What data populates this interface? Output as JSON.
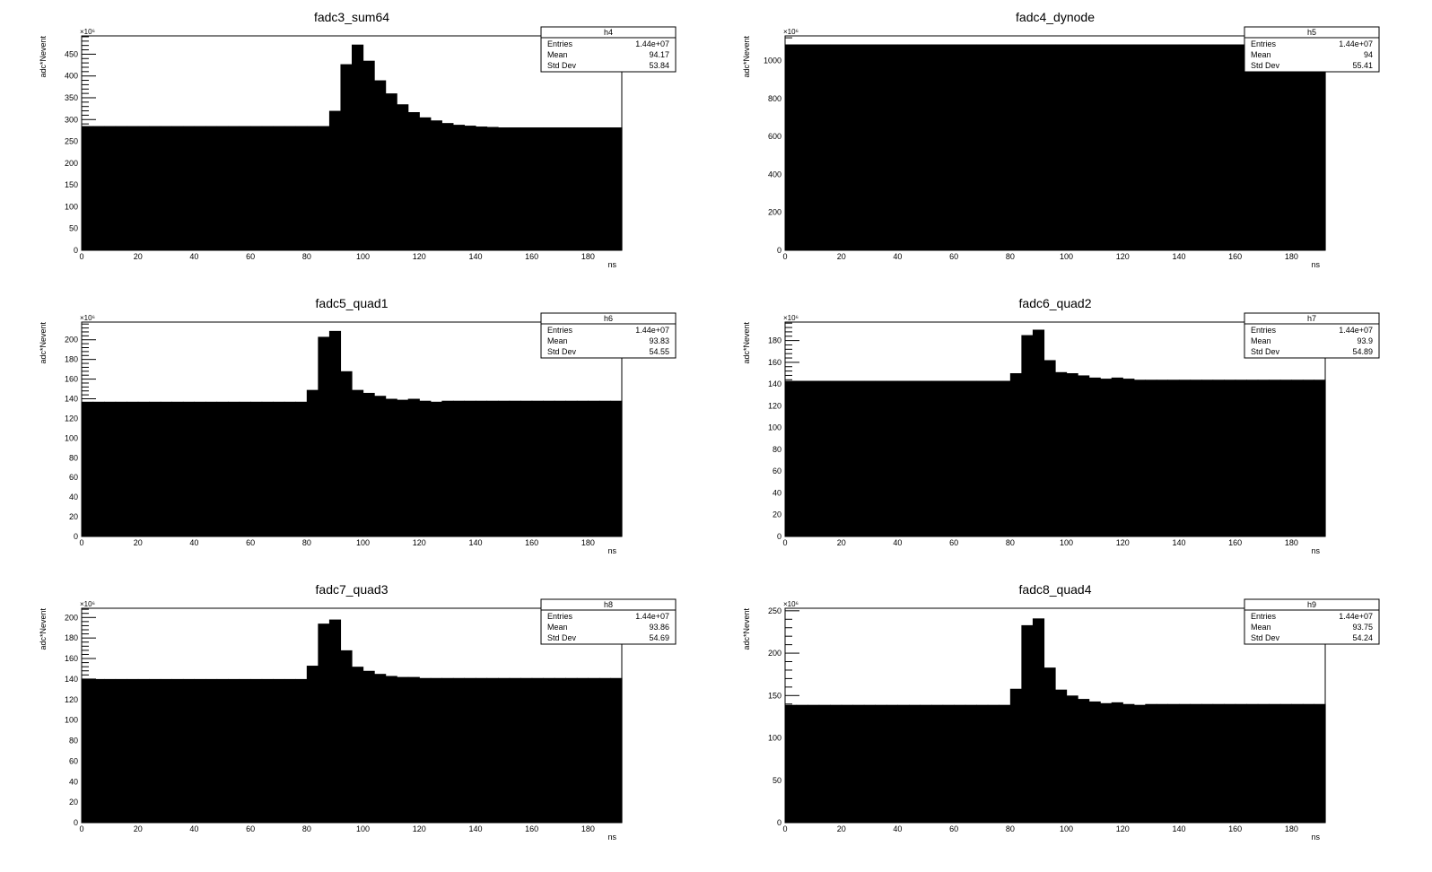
{
  "canvas": {
    "background": "#ffffff",
    "fill_color": "#000000"
  },
  "chart_data": [
    {
      "type": "bar",
      "title": "fadc3_sum64",
      "xlabel": "ns",
      "ylabel": "adc*Nevent",
      "y_multiplier": "×10⁶",
      "xlim": [
        0,
        192
      ],
      "ylim": [
        0,
        492
      ],
      "xticks": [
        0,
        20,
        40,
        60,
        80,
        100,
        120,
        140,
        160,
        180
      ],
      "yticks": [
        0,
        50,
        100,
        150,
        200,
        250,
        300,
        350,
        400,
        450
      ],
      "bin_width": 4,
      "values": [
        285,
        285,
        285,
        285,
        285,
        285,
        285,
        285,
        285,
        285,
        285,
        285,
        285,
        285,
        285,
        285,
        285,
        285,
        285,
        285,
        285,
        285,
        320,
        427,
        472,
        435,
        390,
        360,
        335,
        317,
        305,
        298,
        292,
        288,
        286,
        284,
        283,
        282,
        282,
        282,
        282,
        282,
        282,
        282,
        282,
        282,
        282,
        282
      ],
      "stats": {
        "name": "h4",
        "rows": [
          {
            "label": "Entries",
            "value": "1.44e+07"
          },
          {
            "label": "Mean",
            "value": "94.17"
          },
          {
            "label": "Std Dev",
            "value": "53.84"
          }
        ]
      }
    },
    {
      "type": "bar",
      "title": "fadc4_dynode",
      "xlabel": "ns",
      "ylabel": "adc*Nevent",
      "y_multiplier": "×10⁶",
      "xlim": [
        0,
        192
      ],
      "ylim": [
        0,
        1130
      ],
      "xticks": [
        0,
        20,
        40,
        60,
        80,
        100,
        120,
        140,
        160,
        180
      ],
      "yticks": [
        0,
        200,
        400,
        600,
        800,
        1000
      ],
      "bin_width": 4,
      "values": [
        1085,
        1085,
        1085,
        1085,
        1085,
        1085,
        1085,
        1085,
        1085,
        1085,
        1085,
        1085,
        1085,
        1085,
        1085,
        1085,
        1085,
        1085,
        1085,
        1085,
        1085,
        1085,
        1085,
        1085,
        1085,
        1085,
        1085,
        1085,
        1085,
        1085,
        1085,
        1085,
        1085,
        1085,
        1085,
        1085,
        1085,
        1085,
        1085,
        1085,
        1085,
        1085,
        1085,
        1085,
        1085,
        1085,
        1085,
        1085
      ],
      "stats": {
        "name": "h5",
        "rows": [
          {
            "label": "Entries",
            "value": "1.44e+07"
          },
          {
            "label": "Mean",
            "value": "94"
          },
          {
            "label": "Std Dev",
            "value": "55.41"
          }
        ]
      }
    },
    {
      "type": "bar",
      "title": "fadc5_quad1",
      "xlabel": "ns",
      "ylabel": "adc*Nevent",
      "y_multiplier": "×10⁶",
      "xlim": [
        0,
        192
      ],
      "ylim": [
        0,
        218
      ],
      "xticks": [
        0,
        20,
        40,
        60,
        80,
        100,
        120,
        140,
        160,
        180
      ],
      "yticks": [
        0,
        20,
        40,
        60,
        80,
        100,
        120,
        140,
        160,
        180,
        200
      ],
      "bin_width": 4,
      "values": [
        137,
        137,
        137,
        137,
        137,
        137,
        137,
        137,
        137,
        137,
        137,
        137,
        137,
        137,
        137,
        137,
        137,
        137,
        137,
        137,
        149,
        203,
        209,
        168,
        149,
        146,
        143,
        140,
        139,
        140,
        138,
        137,
        138,
        138,
        138,
        138,
        138,
        138,
        138,
        138,
        138,
        138,
        138,
        138,
        138,
        138,
        138,
        138
      ],
      "stats": {
        "name": "h6",
        "rows": [
          {
            "label": "Entries",
            "value": "1.44e+07"
          },
          {
            "label": "Mean",
            "value": "93.83"
          },
          {
            "label": "Std Dev",
            "value": "54.55"
          }
        ]
      }
    },
    {
      "type": "bar",
      "title": "fadc6_quad2",
      "xlabel": "ns",
      "ylabel": "adc*Nevent",
      "y_multiplier": "×10⁶",
      "xlim": [
        0,
        192
      ],
      "ylim": [
        0,
        197
      ],
      "xticks": [
        0,
        20,
        40,
        60,
        80,
        100,
        120,
        140,
        160,
        180
      ],
      "yticks": [
        0,
        20,
        40,
        60,
        80,
        100,
        120,
        140,
        160,
        180
      ],
      "bin_width": 4,
      "values": [
        143,
        143,
        143,
        143,
        143,
        143,
        143,
        143,
        143,
        143,
        143,
        143,
        143,
        143,
        143,
        143,
        143,
        143,
        143,
        143,
        150,
        185,
        190,
        162,
        151,
        150,
        148,
        146,
        145,
        146,
        145,
        144,
        144,
        144,
        144,
        144,
        144,
        144,
        144,
        144,
        144,
        144,
        144,
        144,
        144,
        144,
        144,
        144
      ],
      "stats": {
        "name": "h7",
        "rows": [
          {
            "label": "Entries",
            "value": "1.44e+07"
          },
          {
            "label": "Mean",
            "value": "93.9"
          },
          {
            "label": "Std Dev",
            "value": "54.89"
          }
        ]
      }
    },
    {
      "type": "bar",
      "title": "fadc7_quad3",
      "xlabel": "ns",
      "ylabel": "adc*Nevent",
      "y_multiplier": "×10⁶",
      "xlim": [
        0,
        192
      ],
      "ylim": [
        0,
        209
      ],
      "xticks": [
        0,
        20,
        40,
        60,
        80,
        100,
        120,
        140,
        160,
        180
      ],
      "yticks": [
        0,
        20,
        40,
        60,
        80,
        100,
        120,
        140,
        160,
        180,
        200
      ],
      "bin_width": 4,
      "values": [
        140,
        140,
        140,
        140,
        140,
        140,
        140,
        140,
        140,
        140,
        140,
        140,
        140,
        140,
        140,
        140,
        140,
        140,
        140,
        140,
        153,
        194,
        198,
        168,
        152,
        148,
        145,
        143,
        142,
        142,
        141,
        141,
        141,
        141,
        141,
        141,
        141,
        141,
        141,
        141,
        141,
        141,
        141,
        141,
        141,
        141,
        141,
        141
      ],
      "stats": {
        "name": "h8",
        "rows": [
          {
            "label": "Entries",
            "value": "1.44e+07"
          },
          {
            "label": "Mean",
            "value": "93.86"
          },
          {
            "label": "Std Dev",
            "value": "54.69"
          }
        ]
      }
    },
    {
      "type": "bar",
      "title": "fadc8_quad4",
      "xlabel": "ns",
      "ylabel": "adc*Nevent",
      "y_multiplier": "×10⁶",
      "xlim": [
        0,
        192
      ],
      "ylim": [
        0,
        253
      ],
      "xticks": [
        0,
        20,
        40,
        60,
        80,
        100,
        120,
        140,
        160,
        180
      ],
      "yticks": [
        0,
        50,
        100,
        150,
        200,
        250
      ],
      "bin_width": 4,
      "values": [
        139,
        139,
        139,
        139,
        139,
        139,
        139,
        139,
        139,
        139,
        139,
        139,
        139,
        139,
        139,
        139,
        139,
        139,
        139,
        139,
        158,
        233,
        241,
        183,
        157,
        150,
        146,
        143,
        141,
        142,
        140,
        139,
        140,
        140,
        140,
        140,
        140,
        140,
        140,
        140,
        140,
        140,
        140,
        140,
        140,
        140,
        140,
        140
      ],
      "stats": {
        "name": "h9",
        "rows": [
          {
            "label": "Entries",
            "value": "1.44e+07"
          },
          {
            "label": "Mean",
            "value": "93.75"
          },
          {
            "label": "Std Dev",
            "value": "54.24"
          }
        ]
      }
    }
  ]
}
